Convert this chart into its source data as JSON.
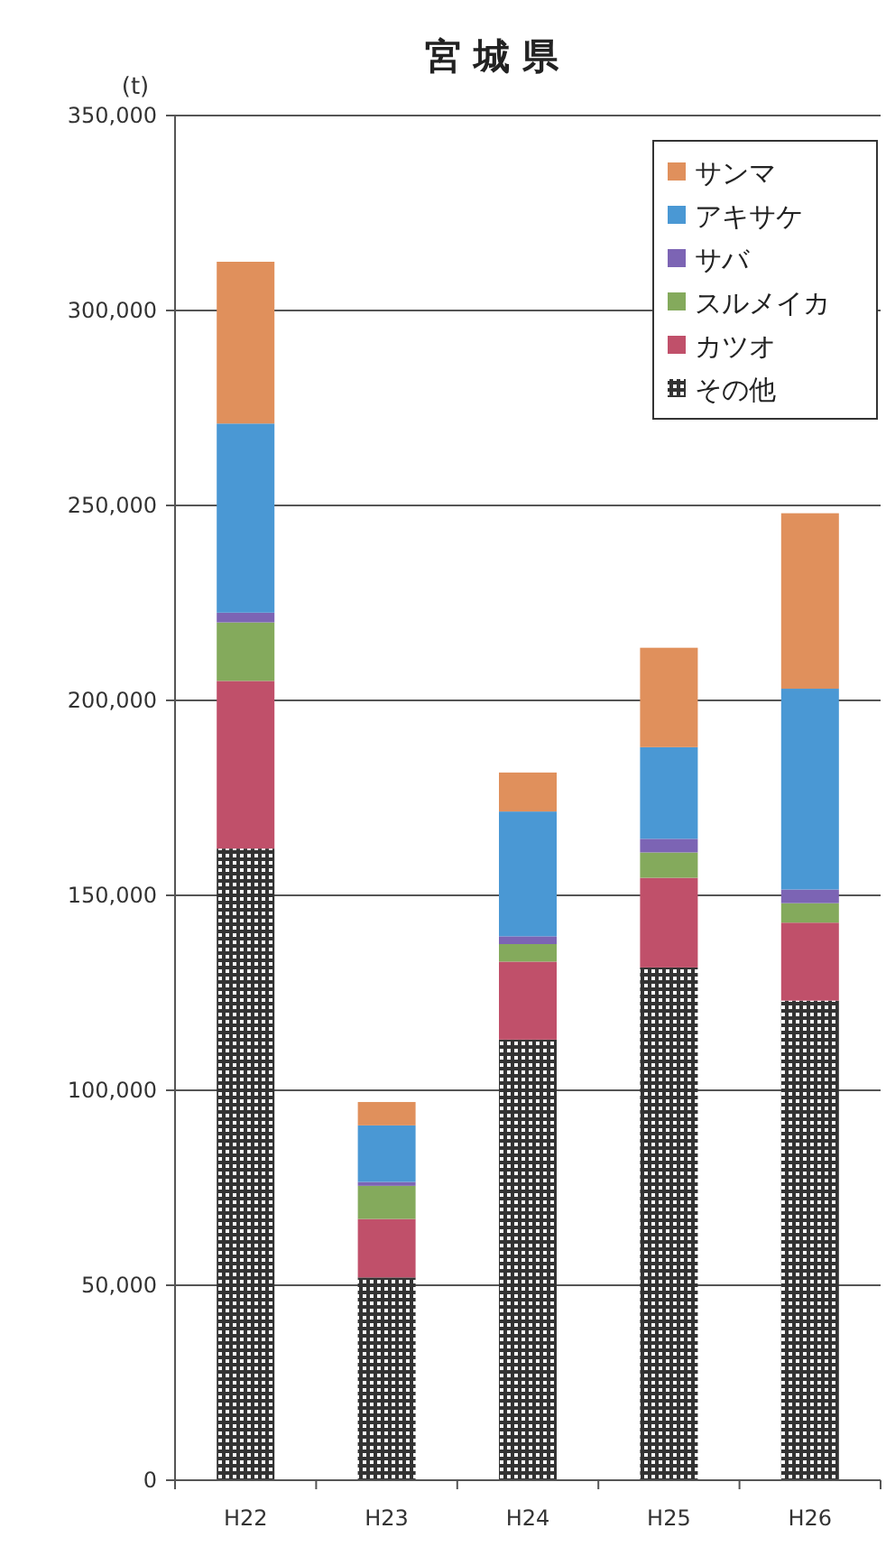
{
  "chart_data": {
    "type": "bar",
    "title": "宮 城 県",
    "ylabel": "(t)",
    "stacked": true,
    "grid": "y",
    "legend": "top right",
    "categories": [
      "H22",
      "H23",
      "H24",
      "H25",
      "H26"
    ],
    "ylim": [
      0,
      350000
    ],
    "yticks": [
      {
        "value": 0,
        "label": "0"
      },
      {
        "value": 50000,
        "label": "50,000"
      },
      {
        "value": 100000,
        "label": "100,000"
      },
      {
        "value": 150000,
        "label": "150,000"
      },
      {
        "value": 200000,
        "label": "200,000"
      },
      {
        "value": 250000,
        "label": "250,000"
      },
      {
        "value": 300000,
        "label": "300,000"
      },
      {
        "value": 350000,
        "label": "350,000"
      }
    ],
    "series": [
      {
        "name": "その他",
        "color": "#333333",
        "values": [
          162000,
          52000,
          113000,
          131500,
          123000
        ]
      },
      {
        "name": "カツオ",
        "color": "#c0506a",
        "values": [
          43000,
          15000,
          20000,
          23000,
          20000
        ]
      },
      {
        "name": "スルメイカ",
        "color": "#84aa5c",
        "values": [
          15000,
          8500,
          4500,
          6500,
          5000
        ]
      },
      {
        "name": "サバ",
        "color": "#7c64b4",
        "values": [
          2500,
          1000,
          2000,
          3500,
          3500
        ]
      },
      {
        "name": "アキサケ",
        "color": "#4a98d4",
        "values": [
          48500,
          14500,
          32000,
          23500,
          51500
        ]
      },
      {
        "name": "サンマ",
        "color": "#e0905c",
        "values": [
          41500,
          6000,
          10000,
          25500,
          45000
        ]
      }
    ]
  }
}
